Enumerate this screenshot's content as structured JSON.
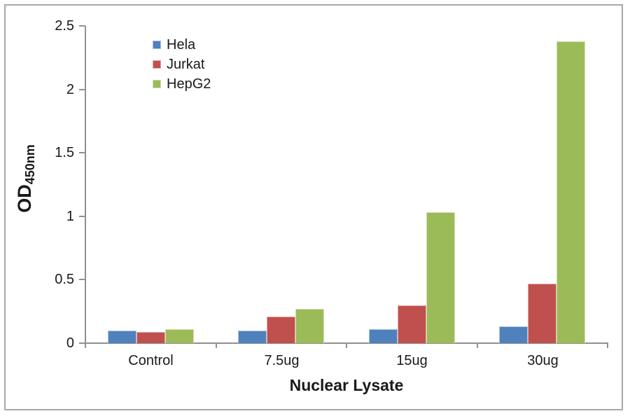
{
  "chart_data": {
    "type": "bar",
    "title": "",
    "xlabel": "Nuclear Lysate",
    "ylabel": "OD",
    "ylabel_subscript": "450nm",
    "categories": [
      "Control",
      "7.5ug",
      "15ug",
      "30ug"
    ],
    "series": [
      {
        "name": "Hela",
        "color": "#4F81BD",
        "values": [
          0.1,
          0.1,
          0.11,
          0.13
        ]
      },
      {
        "name": "Jurkat",
        "color": "#C0504D",
        "values": [
          0.09,
          0.21,
          0.3,
          0.47
        ]
      },
      {
        "name": "HepG2",
        "color": "#9BBB59",
        "values": [
          0.11,
          0.27,
          1.03,
          2.38
        ]
      }
    ],
    "ylim": [
      0,
      2.5
    ],
    "yticks": [
      0,
      0.5,
      1,
      1.5,
      2,
      2.5
    ],
    "grid": false,
    "legend_position": "top-left-inside"
  },
  "frame": {
    "border_color": "#A8A8A8"
  },
  "axis": {
    "line_color": "#909090",
    "text_color": "#1A1A1A"
  }
}
